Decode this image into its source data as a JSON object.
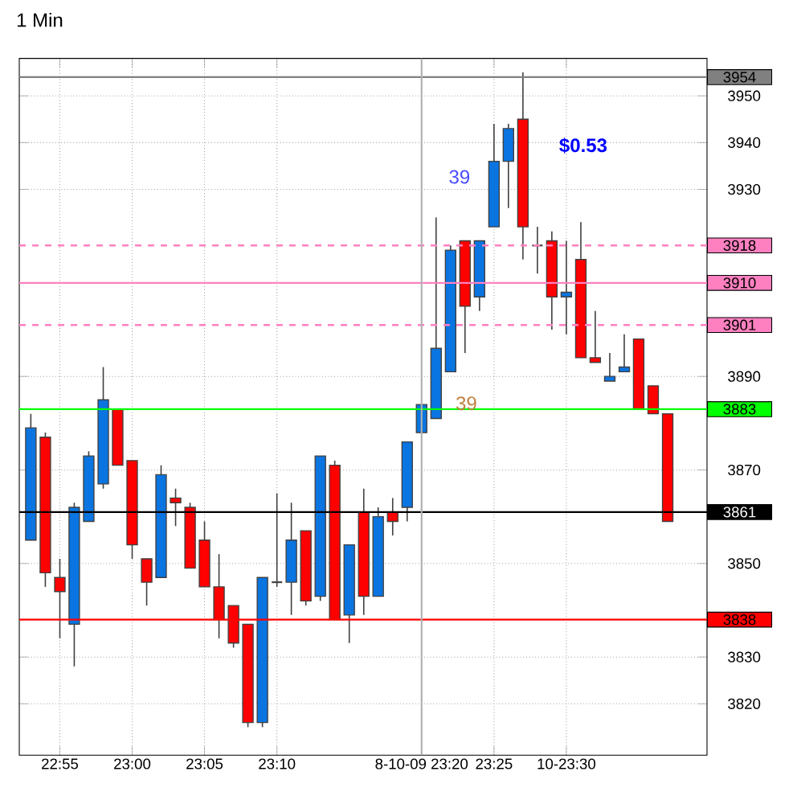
{
  "chart_data": {
    "type": "candlestick",
    "title": "1 Min",
    "x": [
      22.8833,
      22.9,
      22.9167,
      22.9333,
      22.95,
      22.9667,
      22.9833,
      23,
      23.0167,
      23.0333,
      23.05,
      23.0667,
      23.0833,
      23.1,
      23.1167,
      23.1333,
      23.15,
      23.1667,
      23.1833,
      23.2,
      23.2167,
      23.2333,
      23.25,
      23.2667,
      23.2833,
      23.3,
      23.3167,
      23.3333,
      23.35,
      23.3667,
      23.3833,
      23.4,
      23.4167,
      23.4333,
      23.45,
      23.4667,
      23.4833,
      23.5,
      23.5167,
      23.5333,
      23.55,
      23.5667,
      23.5833,
      23.6,
      23.6167
    ],
    "ohlc": [
      [
        3855,
        3882,
        3855,
        3879
      ],
      [
        3877,
        3878,
        3845,
        3848
      ],
      [
        3847,
        3851,
        3834,
        3844
      ],
      [
        3837,
        3863,
        3828,
        3862
      ],
      [
        3859,
        3874,
        3859,
        3873
      ],
      [
        3867,
        3892,
        3866,
        3885
      ],
      [
        3883,
        3883,
        3871,
        3871
      ],
      [
        3872,
        3872,
        3851,
        3854
      ],
      [
        3851,
        3851,
        3841,
        3846
      ],
      [
        3847,
        3871,
        3847,
        3869
      ],
      [
        3864,
        3866,
        3858,
        3863
      ],
      [
        3862,
        3863,
        3849,
        3849
      ],
      [
        3855,
        3859,
        3845,
        3845
      ],
      [
        3845,
        3852,
        3834,
        3838
      ],
      [
        3841,
        3841,
        3832,
        3833
      ],
      [
        3837,
        3837,
        3815,
        3816
      ],
      [
        3816,
        3847,
        3815,
        3847
      ],
      [
        3846,
        3865,
        3845,
        3846
      ],
      [
        3846,
        3863,
        3839,
        3855
      ],
      [
        3857,
        3857,
        3841,
        3842
      ],
      [
        3843,
        3873,
        3842,
        3873
      ],
      [
        3871,
        3872,
        3838,
        3838
      ],
      [
        3839,
        3854,
        3833,
        3854
      ],
      [
        3861,
        3866,
        3839,
        3843
      ],
      [
        3843,
        3862,
        3843,
        3860
      ],
      [
        3861,
        3864,
        3856,
        3859
      ],
      [
        3862,
        3876,
        3859,
        3876
      ],
      [
        3878,
        3884,
        3878,
        3884
      ],
      [
        3881,
        3924,
        3881,
        3896
      ],
      [
        3891,
        3918,
        3891,
        3917
      ],
      [
        3919,
        3919,
        3895,
        3905
      ],
      [
        3907,
        3919,
        3904,
        3919
      ],
      [
        3922,
        3944,
        3922,
        3936
      ],
      [
        3936,
        3944,
        3926,
        3943
      ],
      [
        3945,
        3955,
        3915,
        3922
      ],
      [
        3918,
        3922,
        3912,
        3918
      ],
      [
        3919,
        3921,
        3900,
        3907
      ],
      [
        3907,
        3919,
        3899,
        3908
      ],
      [
        3915,
        3923,
        3894,
        3894
      ],
      [
        3894,
        3904,
        3893,
        3893
      ],
      [
        3889,
        3895,
        3889,
        3890
      ],
      [
        3891,
        3899,
        3891,
        3892
      ],
      [
        3898,
        3898,
        3883,
        3883
      ],
      [
        3888,
        3888,
        3882,
        3882
      ],
      [
        3882,
        3882,
        3859,
        3859
      ]
    ],
    "colors": [
      "#0a74e0",
      "#ff0000",
      "#ff0000",
      "#0a74e0",
      "#0a74e0",
      "#0a74e0",
      "#ff0000",
      "#ff0000",
      "#ff0000",
      "#0a74e0",
      "#ff0000",
      "#ff0000",
      "#ff0000",
      "#ff0000",
      "#ff0000",
      "#ff0000",
      "#0a74e0",
      "#404040",
      "#0a74e0",
      "#ff0000",
      "#0a74e0",
      "#ff0000",
      "#0a74e0",
      "#ff0000",
      "#0a74e0",
      "#ff0000",
      "#0a74e0",
      "#0a74e0",
      "#0a74e0",
      "#0a74e0",
      "#ff0000",
      "#0a74e0",
      "#0a74e0",
      "#0a74e0",
      "#ff0000",
      "#404040",
      "#ff0000",
      "#0a74e0",
      "#ff0000",
      "#ff0000",
      "#0a74e0",
      "#0a74e0",
      "#ff0000",
      "#ff0000",
      "#ff0000"
    ],
    "xlim": [
      22.87,
      23.662
    ],
    "ylim": [
      3809,
      3958
    ],
    "xticks": [
      {
        "value": 22.9167,
        "label": "22:55"
      },
      {
        "value": 23,
        "label": "23:00"
      },
      {
        "value": 23.0833,
        "label": "23:05"
      },
      {
        "value": 23.1667,
        "label": "23:10"
      },
      {
        "value": 23.3333,
        "label": "8-10-09 23:20"
      },
      {
        "value": 23.4167,
        "label": "23:25"
      },
      {
        "value": 23.5,
        "label": "10-23:30"
      }
    ],
    "yticks": [
      3820,
      3830,
      3850,
      3870,
      3890,
      3930,
      3940,
      3950
    ],
    "grid": true,
    "ref_lines": [
      {
        "axis": "y",
        "value": 3954,
        "label": "3954",
        "color": "#808080"
      },
      {
        "axis": "y",
        "value": 3918,
        "label": "3918",
        "color": "#ff80c0",
        "line_style": "dashed"
      },
      {
        "axis": "y",
        "value": 3910,
        "label": "3910",
        "color": "#ff80c0"
      },
      {
        "axis": "y",
        "value": 3901,
        "label": "3901",
        "color": "#ff80c0",
        "line_style": "dashed"
      },
      {
        "axis": "y",
        "value": 3883,
        "label": "3883",
        "color": "#00ff00"
      },
      {
        "axis": "y",
        "value": 3861,
        "label": "3861",
        "color": "#000000"
      },
      {
        "axis": "y",
        "value": 3838,
        "label": "3838",
        "color": "#ff0000"
      },
      {
        "axis": "x",
        "value": 23.3333,
        "color": "#b0b0b0"
      }
    ],
    "annotations": [
      "$0.53",
      "39",
      "39"
    ]
  }
}
